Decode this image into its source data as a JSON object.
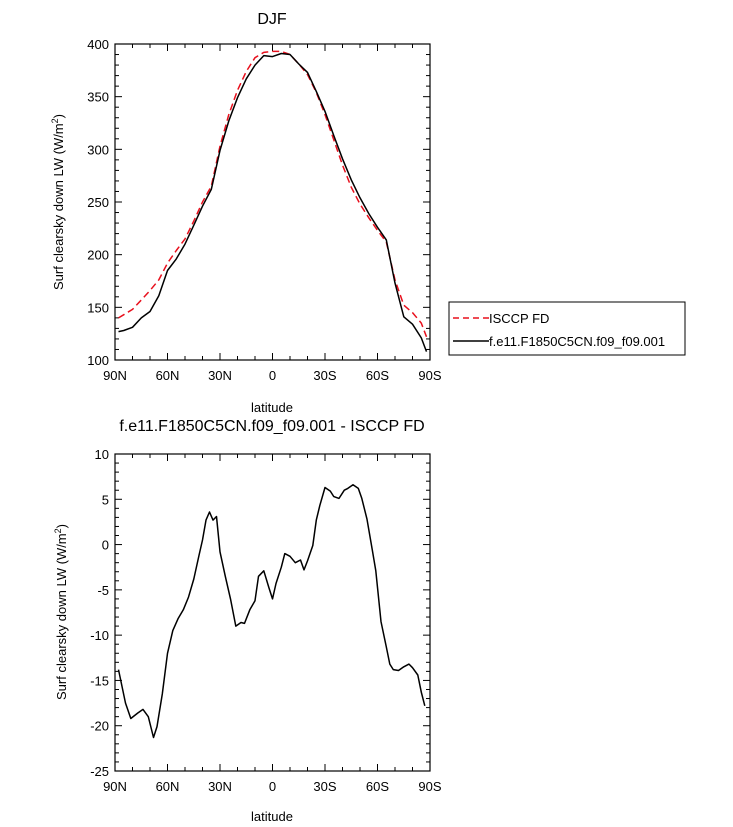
{
  "chart_data": [
    {
      "type": "line",
      "title": "DJF",
      "xlabel": "latitude",
      "ylabel_main": "Surf clearsky down LW (W/m",
      "ylabel_sup": "2",
      "ylabel_end": ")",
      "xlim": [
        90,
        -90
      ],
      "ylim": [
        100,
        400
      ],
      "xticks": [
        90,
        60,
        30,
        0,
        -30,
        -60,
        -90
      ],
      "xtick_labels": [
        "90N",
        "60N",
        "30N",
        "0",
        "30S",
        "60S",
        "90S"
      ],
      "yticks": [
        100,
        150,
        200,
        250,
        300,
        350,
        400
      ],
      "ytick_labels": [
        "100",
        "150",
        "200",
        "250",
        "300",
        "350",
        "400"
      ],
      "legend_position": "right",
      "series": [
        {
          "name": "ISCCP FD",
          "color": "#e8101d",
          "dash": "dashed",
          "x": [
            88,
            85,
            80,
            75,
            70,
            65,
            60,
            55,
            50,
            45,
            40,
            35,
            30,
            25,
            20,
            15,
            10,
            5,
            0,
            -5,
            -10,
            -15,
            -20,
            -25,
            -30,
            -35,
            -40,
            -45,
            -50,
            -55,
            -60,
            -65,
            -70,
            -75,
            -80,
            -85,
            -88
          ],
          "y": [
            140,
            143,
            148,
            157,
            166,
            176,
            192,
            204,
            215,
            232,
            250,
            265,
            303,
            333,
            356,
            374,
            387,
            392,
            393,
            393,
            390,
            381,
            371,
            354,
            333,
            309,
            285,
            264,
            248,
            235,
            223,
            212,
            176,
            152,
            145,
            135,
            122
          ]
        },
        {
          "name": "f.e11.F1850C5CN.f09_f09.001",
          "color": "#000000",
          "dash": "solid",
          "x": [
            88,
            85,
            80,
            75,
            70,
            65,
            60,
            55,
            50,
            45,
            40,
            35,
            30,
            25,
            20,
            15,
            10,
            5,
            0,
            -5,
            -10,
            -15,
            -20,
            -25,
            -30,
            -35,
            -40,
            -45,
            -50,
            -55,
            -60,
            -65,
            -70,
            -75,
            -80,
            -85,
            -88
          ],
          "y": [
            127,
            128,
            131,
            140,
            146,
            161,
            185,
            196,
            210,
            228,
            246,
            262,
            299,
            327,
            349,
            367,
            380,
            389,
            388,
            391,
            390,
            381,
            373,
            355,
            336,
            313,
            291,
            271,
            254,
            239,
            226,
            214,
            173,
            141,
            134,
            121,
            108
          ]
        }
      ]
    },
    {
      "type": "line",
      "title": "f.e11.F1850C5CN.f09_f09.001 - ISCCP FD",
      "xlabel": "latitude",
      "ylabel_main": "Surf clearsky down LW (W/m",
      "ylabel_sup": "2",
      "ylabel_end": ")",
      "xlim": [
        90,
        -90
      ],
      "ylim": [
        -25,
        10
      ],
      "xticks": [
        90,
        60,
        30,
        0,
        -30,
        -60,
        -90
      ],
      "xtick_labels": [
        "90N",
        "60N",
        "30N",
        "0",
        "30S",
        "60S",
        "90S"
      ],
      "yticks": [
        10,
        5,
        0,
        -5,
        -10,
        -15,
        -20,
        -25
      ],
      "ytick_labels": [
        "10",
        "5",
        "0",
        "-5",
        "-10",
        "-15",
        "-20",
        "-25"
      ],
      "series": [
        {
          "color": "#000000",
          "dash": "solid",
          "x": [
            88,
            84,
            81,
            77,
            74,
            71,
            68,
            66,
            63,
            60,
            57,
            54,
            51,
            48,
            45,
            42,
            40,
            38,
            36,
            34,
            32,
            30,
            27,
            24,
            21,
            18,
            16,
            13,
            10,
            8,
            5,
            2,
            0,
            -2,
            -5,
            -7,
            -10,
            -13,
            -16,
            -18,
            -20,
            -23,
            -25,
            -27,
            -30,
            -33,
            -35,
            -38,
            -41,
            -43,
            -46,
            -49,
            -51,
            -54,
            -57,
            -59,
            -62,
            -65,
            -67,
            -69,
            -72,
            -75,
            -78,
            -80,
            -83,
            -85,
            -87
          ],
          "y": [
            -13.8,
            -17.5,
            -19.2,
            -18.6,
            -18.2,
            -19.0,
            -21.3,
            -20.1,
            -16.5,
            -12.0,
            -9.5,
            -8.2,
            -7.2,
            -5.8,
            -3.8,
            -1.2,
            0.5,
            2.7,
            3.6,
            2.7,
            3.1,
            -0.8,
            -3.5,
            -6.0,
            -9.0,
            -8.6,
            -8.7,
            -7.2,
            -6.2,
            -3.5,
            -2.9,
            -4.8,
            -6.0,
            -4.3,
            -2.5,
            -1.0,
            -1.3,
            -2.0,
            -1.7,
            -2.8,
            -1.8,
            -0.1,
            2.7,
            4.3,
            6.3,
            5.9,
            5.3,
            5.1,
            6.0,
            6.2,
            6.6,
            6.2,
            5.1,
            2.8,
            -0.6,
            -2.9,
            -8.5,
            -11.3,
            -13.2,
            -13.8,
            -13.9,
            -13.5,
            -13.2,
            -13.6,
            -14.4,
            -16.3,
            -17.8
          ]
        }
      ]
    }
  ]
}
